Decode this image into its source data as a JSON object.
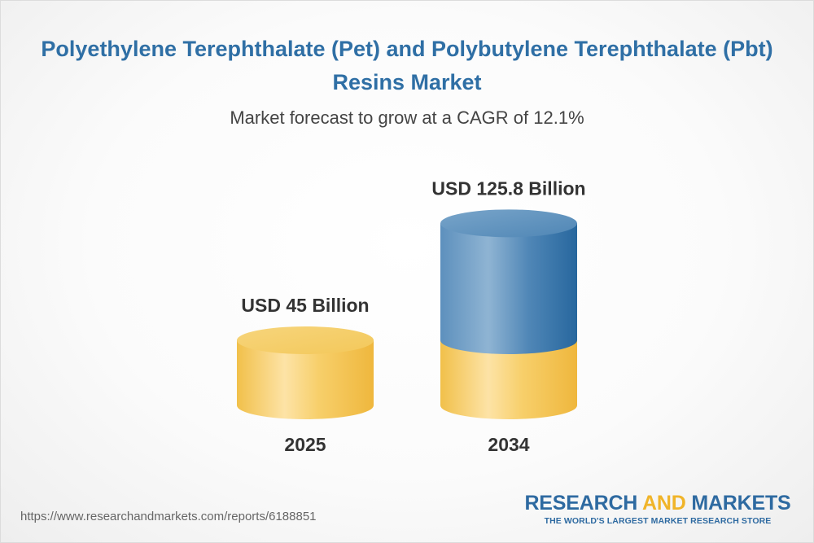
{
  "chart_data": {
    "type": "bar",
    "style": "3d-cylinder",
    "title": "Polyethylene Terephthalate (Pet) and Polybutylene Terephthalate (Pbt) Resins Market",
    "subtitle": "Market forecast to grow at a CAGR of 12.1%",
    "categories": [
      "2025",
      "2034"
    ],
    "values": [
      45,
      125.8
    ],
    "unit": "USD Billion",
    "data_labels": [
      "USD 45 Billion",
      "USD 125.8 Billion"
    ],
    "colors": {
      "base": "#f5c54a",
      "growth": "#3a78ab"
    }
  },
  "title_lines": [
    "Polyethylene Terephthalate (Pet) and Polybutylene Terephthalate (Pbt)",
    "Resins Market"
  ],
  "footer": {
    "url": "https://www.researchandmarkets.com/reports/6188851",
    "brand_research": "RESEARCH",
    "brand_and": "AND",
    "brand_markets": "MARKETS",
    "brand_tagline": "THE WORLD'S LARGEST MARKET RESEARCH STORE"
  }
}
